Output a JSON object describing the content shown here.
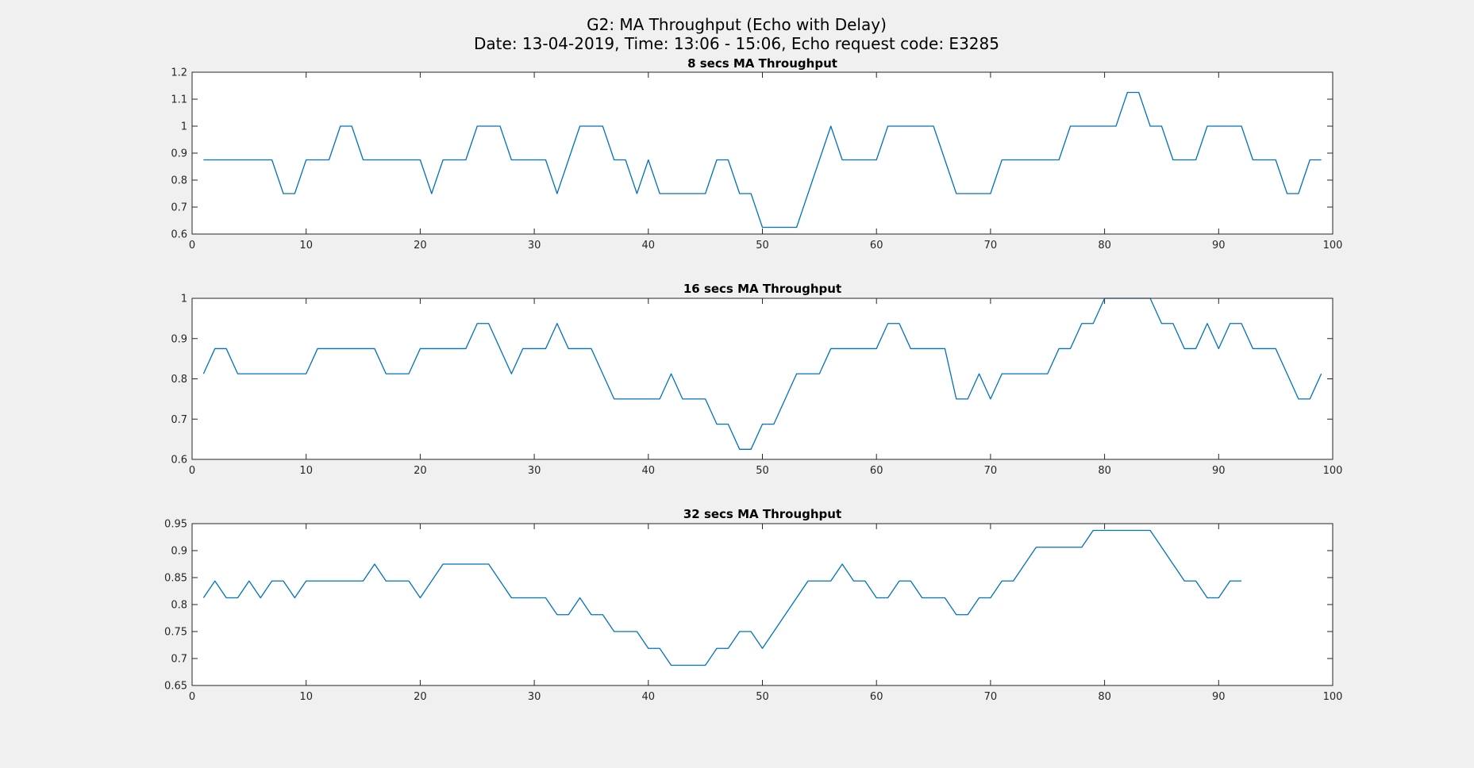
{
  "figure": {
    "title_line1": "G2: MA Throughput (Echo with Delay)",
    "title_line2": "Date: 13-04-2019, Time: 13:06 - 15:06, Echo request code: E3285"
  },
  "colors": {
    "background": "#f0f0f0",
    "axes_background": "#ffffff",
    "axes_edge": "#262626",
    "series": "#0072bd"
  },
  "chart_data": [
    {
      "type": "line",
      "title": "8 secs MA Throughput",
      "xlabel": "",
      "ylabel": "",
      "xlim": [
        0,
        100
      ],
      "ylim": [
        0.6,
        1.2
      ],
      "xticks": [
        0,
        10,
        20,
        30,
        40,
        50,
        60,
        70,
        80,
        90,
        100
      ],
      "xtick_labels": [
        "0",
        "10",
        "20",
        "30",
        "40",
        "50",
        "60",
        "70",
        "80",
        "90",
        "100"
      ],
      "yticks": [
        0.6,
        0.7,
        0.8,
        0.9,
        1.0,
        1.1,
        1.2
      ],
      "ytick_labels": [
        "0.6",
        "0.7",
        "0.8",
        "0.9",
        "1",
        "1.1",
        "1.2"
      ],
      "grid": false,
      "series": [
        {
          "x": [
            1,
            2,
            3,
            4,
            5,
            6,
            7,
            8,
            9,
            10,
            11,
            12,
            13,
            14,
            15,
            16,
            17,
            18,
            19,
            20,
            21,
            22,
            23,
            24,
            25,
            26,
            27,
            28,
            29,
            30,
            31,
            32,
            33,
            34,
            35,
            36,
            37,
            38,
            39,
            40,
            41,
            42,
            43,
            44,
            45,
            46,
            47,
            48,
            49,
            50,
            51,
            52,
            53,
            54,
            55,
            56,
            57,
            58,
            59,
            60,
            61,
            62,
            63,
            64,
            65,
            66,
            67,
            68,
            69,
            70,
            71,
            72,
            73,
            74,
            75,
            76,
            77,
            78,
            79,
            80,
            81,
            82,
            83,
            84,
            85,
            86,
            87,
            88,
            89,
            90,
            91,
            92,
            93,
            94,
            95,
            96,
            97,
            98,
            99
          ],
          "y": [
            0.875,
            0.875,
            0.875,
            0.875,
            0.875,
            0.875,
            0.875,
            0.75,
            0.75,
            0.875,
            0.875,
            0.875,
            1,
            1,
            0.875,
            0.875,
            0.875,
            0.875,
            0.875,
            0.875,
            0.75,
            0.875,
            0.875,
            0.875,
            1,
            1,
            1,
            0.875,
            0.875,
            0.875,
            0.875,
            0.75,
            0.875,
            1,
            1,
            1,
            0.875,
            0.875,
            0.75,
            0.875,
            0.75,
            0.75,
            0.75,
            0.75,
            0.75,
            0.875,
            0.875,
            0.75,
            0.75,
            0.625,
            0.625,
            0.625,
            0.625,
            0.75,
            0.875,
            1,
            0.875,
            0.875,
            0.875,
            0.875,
            1,
            1,
            1,
            1,
            1,
            0.875,
            0.75,
            0.75,
            0.75,
            0.75,
            0.875,
            0.875,
            0.875,
            0.875,
            0.875,
            0.875,
            1,
            1,
            1,
            1,
            1,
            1.125,
            1.125,
            1,
            1,
            0.875,
            0.875,
            0.875,
            1,
            1,
            1,
            1,
            0.875,
            0.875,
            0.875,
            0.75,
            0.75,
            0.875,
            0.875
          ]
        }
      ]
    },
    {
      "type": "line",
      "title": "16 secs MA Throughput",
      "xlabel": "",
      "ylabel": "",
      "xlim": [
        0,
        100
      ],
      "ylim": [
        0.6,
        1.0
      ],
      "xticks": [
        0,
        10,
        20,
        30,
        40,
        50,
        60,
        70,
        80,
        90,
        100
      ],
      "xtick_labels": [
        "0",
        "10",
        "20",
        "30",
        "40",
        "50",
        "60",
        "70",
        "80",
        "90",
        "100"
      ],
      "yticks": [
        0.6,
        0.7,
        0.8,
        0.9,
        1.0
      ],
      "ytick_labels": [
        "0.6",
        "0.7",
        "0.8",
        "0.9",
        "1"
      ],
      "grid": false,
      "series": [
        {
          "x": [
            1,
            2,
            3,
            4,
            5,
            6,
            7,
            8,
            9,
            10,
            11,
            12,
            13,
            14,
            15,
            16,
            17,
            18,
            19,
            20,
            21,
            22,
            23,
            24,
            25,
            26,
            27,
            28,
            29,
            30,
            31,
            32,
            33,
            34,
            35,
            36,
            37,
            38,
            39,
            40,
            41,
            42,
            43,
            44,
            45,
            46,
            47,
            48,
            49,
            50,
            51,
            52,
            53,
            54,
            55,
            56,
            57,
            58,
            59,
            60,
            61,
            62,
            63,
            64,
            65,
            66,
            67,
            68,
            69,
            70,
            71,
            72,
            73,
            74,
            75,
            76,
            77,
            78,
            79,
            80,
            81,
            82,
            83,
            84,
            85,
            86,
            87,
            88,
            89,
            90,
            91,
            92,
            93,
            94,
            95,
            96,
            97,
            98,
            99
          ],
          "y": [
            0.8125,
            0.875,
            0.875,
            0.8125,
            0.8125,
            0.8125,
            0.8125,
            0.8125,
            0.8125,
            0.8125,
            0.875,
            0.875,
            0.875,
            0.875,
            0.875,
            0.875,
            0.8125,
            0.8125,
            0.8125,
            0.875,
            0.875,
            0.875,
            0.875,
            0.875,
            0.9375,
            0.9375,
            0.875,
            0.8125,
            0.875,
            0.875,
            0.875,
            0.9375,
            0.875,
            0.875,
            0.875,
            0.8125,
            0.75,
            0.75,
            0.75,
            0.75,
            0.75,
            0.8125,
            0.75,
            0.75,
            0.75,
            0.6875,
            0.6875,
            0.625,
            0.625,
            0.6875,
            0.6875,
            0.75,
            0.8125,
            0.8125,
            0.8125,
            0.875,
            0.875,
            0.875,
            0.875,
            0.875,
            0.9375,
            0.9375,
            0.875,
            0.875,
            0.875,
            0.875,
            0.75,
            0.75,
            0.8125,
            0.75,
            0.8125,
            0.8125,
            0.8125,
            0.8125,
            0.8125,
            0.875,
            0.875,
            0.9375,
            0.9375,
            1,
            1,
            1,
            1,
            1,
            0.9375,
            0.9375,
            0.875,
            0.875,
            0.9375,
            0.875,
            0.9375,
            0.9375,
            0.875,
            0.875,
            0.875,
            0.8125,
            0.75,
            0.75,
            0.8125
          ]
        }
      ]
    },
    {
      "type": "line",
      "title": "32 secs MA Throughput",
      "xlabel": "",
      "ylabel": "",
      "xlim": [
        0,
        100
      ],
      "ylim": [
        0.65,
        0.95
      ],
      "xticks": [
        0,
        10,
        20,
        30,
        40,
        50,
        60,
        70,
        80,
        90,
        100
      ],
      "xtick_labels": [
        "0",
        "10",
        "20",
        "30",
        "40",
        "50",
        "60",
        "70",
        "80",
        "90",
        "100"
      ],
      "yticks": [
        0.65,
        0.7,
        0.75,
        0.8,
        0.85,
        0.9,
        0.95
      ],
      "ytick_labels": [
        "0.65",
        "0.7",
        "0.75",
        "0.8",
        "0.85",
        "0.9",
        "0.95"
      ],
      "grid": false,
      "series": [
        {
          "x": [
            1,
            2,
            3,
            4,
            5,
            6,
            7,
            8,
            9,
            10,
            11,
            12,
            13,
            14,
            15,
            16,
            17,
            18,
            19,
            20,
            21,
            22,
            23,
            24,
            25,
            26,
            27,
            28,
            29,
            30,
            31,
            32,
            33,
            34,
            35,
            36,
            37,
            38,
            39,
            40,
            41,
            42,
            43,
            44,
            45,
            46,
            47,
            48,
            49,
            50,
            51,
            52,
            53,
            54,
            55,
            56,
            57,
            58,
            59,
            60,
            61,
            62,
            63,
            64,
            65,
            66,
            67,
            68,
            69,
            70,
            71,
            72,
            73,
            74,
            75,
            76,
            77,
            78,
            79,
            80,
            81,
            82,
            83,
            84,
            85,
            86,
            87,
            88,
            89,
            90,
            91,
            92
          ],
          "y": [
            0.8125,
            0.84375,
            0.8125,
            0.8125,
            0.84375,
            0.8125,
            0.84375,
            0.84375,
            0.8125,
            0.84375,
            0.84375,
            0.84375,
            0.84375,
            0.84375,
            0.84375,
            0.875,
            0.84375,
            0.84375,
            0.84375,
            0.8125,
            0.84375,
            0.875,
            0.875,
            0.875,
            0.875,
            0.875,
            0.84375,
            0.8125,
            0.8125,
            0.8125,
            0.8125,
            0.78125,
            0.78125,
            0.8125,
            0.78125,
            0.78125,
            0.75,
            0.75,
            0.75,
            0.71875,
            0.71875,
            0.6875,
            0.6875,
            0.6875,
            0.6875,
            0.71875,
            0.71875,
            0.75,
            0.75,
            0.71875,
            0.75,
            0.78125,
            0.8125,
            0.84375,
            0.84375,
            0.84375,
            0.875,
            0.84375,
            0.84375,
            0.8125,
            0.8125,
            0.84375,
            0.84375,
            0.8125,
            0.8125,
            0.8125,
            0.78125,
            0.78125,
            0.8125,
            0.8125,
            0.84375,
            0.84375,
            0.875,
            0.90625,
            0.90625,
            0.90625,
            0.90625,
            0.90625,
            0.9375,
            0.9375,
            0.9375,
            0.9375,
            0.9375,
            0.9375,
            0.90625,
            0.875,
            0.84375,
            0.84375,
            0.8125,
            0.8125,
            0.84375,
            0.84375
          ]
        }
      ]
    }
  ]
}
